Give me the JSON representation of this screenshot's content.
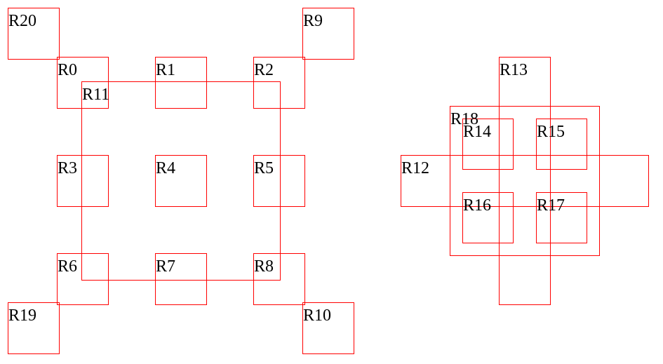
{
  "style": {
    "stroke_color": "#ff0000",
    "text_color": "#000000",
    "background": "#ffffff"
  },
  "regions": [
    {
      "id": "r20",
      "label": "R20"
    },
    {
      "id": "r9",
      "label": "R9"
    },
    {
      "id": "r0",
      "label": "R0"
    },
    {
      "id": "r1",
      "label": "R1"
    },
    {
      "id": "r2",
      "label": "R2"
    },
    {
      "id": "r11",
      "label": "R11"
    },
    {
      "id": "r3",
      "label": "R3"
    },
    {
      "id": "r4",
      "label": "R4"
    },
    {
      "id": "r5",
      "label": "R5"
    },
    {
      "id": "r6",
      "label": "R6"
    },
    {
      "id": "r7",
      "label": "R7"
    },
    {
      "id": "r8",
      "label": "R8"
    },
    {
      "id": "r19",
      "label": "R19"
    },
    {
      "id": "r10",
      "label": "R10"
    },
    {
      "id": "r13",
      "label": "R13"
    },
    {
      "id": "r18",
      "label": "R18"
    },
    {
      "id": "r14",
      "label": "R14"
    },
    {
      "id": "r15",
      "label": "R15"
    },
    {
      "id": "r12",
      "label": "R12"
    },
    {
      "id": "r16",
      "label": "R16"
    },
    {
      "id": "r17",
      "label": "R17"
    }
  ]
}
